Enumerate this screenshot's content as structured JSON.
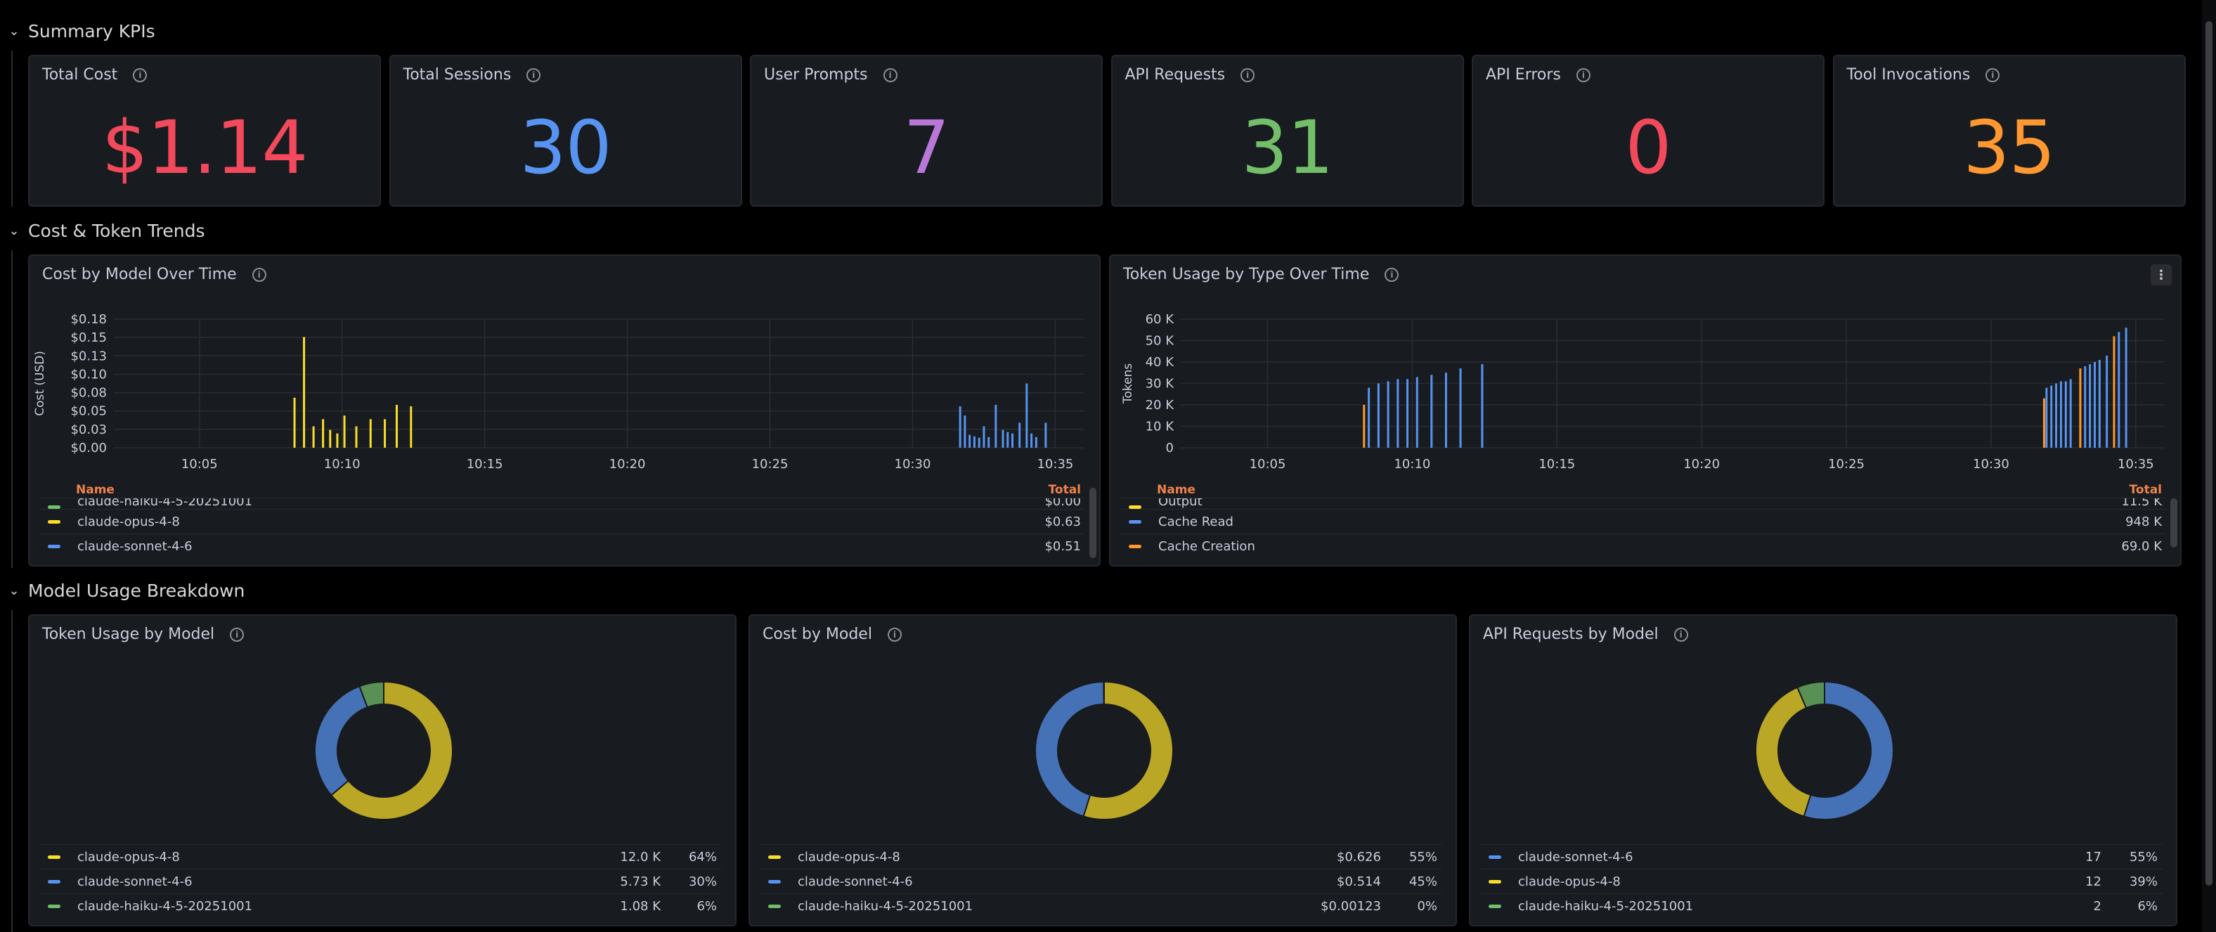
{
  "rows": {
    "summary": {
      "title": "Summary KPIs"
    },
    "trends": {
      "title": "Cost & Token Trends"
    },
    "breakdown": {
      "title": "Model Usage Breakdown"
    }
  },
  "kpis": [
    {
      "title": "Total Cost",
      "value": "$1.14",
      "color": "#f2495c"
    },
    {
      "title": "Total Sessions",
      "value": "30",
      "color": "#5794f2"
    },
    {
      "title": "User Prompts",
      "value": "7",
      "color": "#b877d9"
    },
    {
      "title": "API Requests",
      "value": "31",
      "color": "#73bf69"
    },
    {
      "title": "API Errors",
      "value": "0",
      "color": "#f2495c"
    },
    {
      "title": "Tool Invocations",
      "value": "35",
      "color": "#ff9830"
    }
  ],
  "cost_chart": {
    "title": "Cost by Model Over Time",
    "legend_head": {
      "name": "Name",
      "total": "Total"
    },
    "legend": [
      {
        "name": "claude-haiku-4-5-20251001",
        "total": "$0.00",
        "color": "#73bf69"
      },
      {
        "name": "claude-opus-4-8",
        "total": "$0.63",
        "color": "#fade2a"
      },
      {
        "name": "claude-sonnet-4-6",
        "total": "$0.51",
        "color": "#5794f2"
      }
    ]
  },
  "token_chart": {
    "title": "Token Usage by Type Over Time",
    "menu_icon": "more-vertical-icon",
    "legend_head": {
      "name": "Name",
      "total": "Total"
    },
    "legend": [
      {
        "name": "Output",
        "total": "11.5 K",
        "color": "#fade2a"
      },
      {
        "name": "Cache Read",
        "total": "948 K",
        "color": "#5794f2"
      },
      {
        "name": "Cache Creation",
        "total": "69.0 K",
        "color": "#ff9830"
      }
    ]
  },
  "donuts": [
    {
      "title": "Token Usage by Model",
      "legend": [
        {
          "name": "claude-opus-4-8",
          "value": "12.0 K",
          "pct": "64%",
          "color": "#fade2a"
        },
        {
          "name": "claude-sonnet-4-6",
          "value": "5.73 K",
          "pct": "30%",
          "color": "#5794f2"
        },
        {
          "name": "claude-haiku-4-5-20251001",
          "value": "1.08 K",
          "pct": "6%",
          "color": "#73bf69"
        }
      ]
    },
    {
      "title": "Cost by Model",
      "legend": [
        {
          "name": "claude-opus-4-8",
          "value": "$0.626",
          "pct": "55%",
          "color": "#fade2a"
        },
        {
          "name": "claude-sonnet-4-6",
          "value": "$0.514",
          "pct": "45%",
          "color": "#5794f2"
        },
        {
          "name": "claude-haiku-4-5-20251001",
          "value": "$0.00123",
          "pct": "0%",
          "color": "#73bf69"
        }
      ]
    },
    {
      "title": "API Requests by Model",
      "legend": [
        {
          "name": "claude-sonnet-4-6",
          "value": "17",
          "pct": "55%",
          "color": "#5794f2"
        },
        {
          "name": "claude-opus-4-8",
          "value": "12",
          "pct": "39%",
          "color": "#fade2a"
        },
        {
          "name": "claude-haiku-4-5-20251001",
          "value": "2",
          "pct": "6%",
          "color": "#73bf69"
        }
      ]
    }
  ],
  "chart_data": [
    {
      "type": "bar",
      "title": "Cost by Model Over Time",
      "xlabel": "",
      "ylabel": "Cost (USD)",
      "x_ticks": [
        "10:05",
        "10:10",
        "10:15",
        "10:20",
        "10:25",
        "10:30",
        "10:35"
      ],
      "y_ticks": [
        "$0.00",
        "$0.03",
        "$0.05",
        "$0.08",
        "$0.10",
        "$0.13",
        "$0.15",
        "$0.18"
      ],
      "xlim": [
        "10:02",
        "10:36"
      ],
      "ylim": [
        0,
        0.18
      ],
      "grid": true,
      "series": [
        {
          "name": "claude-opus-4-8",
          "color": "#fade2a",
          "points": [
            {
              "x": "10:08:20",
              "y": 0.07
            },
            {
              "x": "10:08:40",
              "y": 0.155
            },
            {
              "x": "10:09:00",
              "y": 0.03
            },
            {
              "x": "10:09:20",
              "y": 0.04
            },
            {
              "x": "10:09:35",
              "y": 0.025
            },
            {
              "x": "10:09:50",
              "y": 0.02
            },
            {
              "x": "10:10:05",
              "y": 0.045
            },
            {
              "x": "10:10:30",
              "y": 0.03
            },
            {
              "x": "10:11:00",
              "y": 0.04
            },
            {
              "x": "10:11:30",
              "y": 0.04
            },
            {
              "x": "10:11:55",
              "y": 0.06
            },
            {
              "x": "10:12:25",
              "y": 0.058
            }
          ]
        },
        {
          "name": "claude-sonnet-4-6",
          "color": "#5794f2",
          "points": [
            {
              "x": "10:31:40",
              "y": 0.058
            },
            {
              "x": "10:31:50",
              "y": 0.045
            },
            {
              "x": "10:32:00",
              "y": 0.018
            },
            {
              "x": "10:32:10",
              "y": 0.016
            },
            {
              "x": "10:32:20",
              "y": 0.014
            },
            {
              "x": "10:32:30",
              "y": 0.03
            },
            {
              "x": "10:32:40",
              "y": 0.015
            },
            {
              "x": "10:32:55",
              "y": 0.06
            },
            {
              "x": "10:33:10",
              "y": 0.025
            },
            {
              "x": "10:33:20",
              "y": 0.022
            },
            {
              "x": "10:33:30",
              "y": 0.02
            },
            {
              "x": "10:33:45",
              "y": 0.035
            },
            {
              "x": "10:34:00",
              "y": 0.09
            },
            {
              "x": "10:34:10",
              "y": 0.02
            },
            {
              "x": "10:34:20",
              "y": 0.015
            },
            {
              "x": "10:34:40",
              "y": 0.035
            }
          ]
        }
      ]
    },
    {
      "type": "bar",
      "title": "Token Usage by Type Over Time",
      "xlabel": "",
      "ylabel": "Tokens",
      "x_ticks": [
        "10:05",
        "10:10",
        "10:15",
        "10:20",
        "10:25",
        "10:30",
        "10:35"
      ],
      "y_ticks": [
        "0",
        "10 K",
        "20 K",
        "30 K",
        "40 K",
        "50 K",
        "60 K"
      ],
      "xlim": [
        "10:02",
        "10:36"
      ],
      "ylim": [
        0,
        60000
      ],
      "grid": true,
      "series": [
        {
          "name": "Cache Creation",
          "color": "#ff9830",
          "points": [
            {
              "x": "10:08:20",
              "y": 20000
            },
            {
              "x": "10:31:50",
              "y": 23000
            },
            {
              "x": "10:33:05",
              "y": 37000
            },
            {
              "x": "10:34:15",
              "y": 52000
            }
          ]
        },
        {
          "name": "Cache Read",
          "color": "#5794f2",
          "points": [
            {
              "x": "10:08:30",
              "y": 28000
            },
            {
              "x": "10:08:50",
              "y": 30000
            },
            {
              "x": "10:09:10",
              "y": 31000
            },
            {
              "x": "10:09:30",
              "y": 32000
            },
            {
              "x": "10:09:50",
              "y": 32000
            },
            {
              "x": "10:10:10",
              "y": 33000
            },
            {
              "x": "10:10:40",
              "y": 34000
            },
            {
              "x": "10:11:10",
              "y": 35000
            },
            {
              "x": "10:11:40",
              "y": 37000
            },
            {
              "x": "10:12:25",
              "y": 39000
            },
            {
              "x": "10:31:55",
              "y": 28000
            },
            {
              "x": "10:32:05",
              "y": 29000
            },
            {
              "x": "10:32:15",
              "y": 30000
            },
            {
              "x": "10:32:25",
              "y": 31000
            },
            {
              "x": "10:32:35",
              "y": 31000
            },
            {
              "x": "10:32:45",
              "y": 32000
            },
            {
              "x": "10:33:15",
              "y": 38000
            },
            {
              "x": "10:33:25",
              "y": 39000
            },
            {
              "x": "10:33:35",
              "y": 40000
            },
            {
              "x": "10:33:45",
              "y": 41000
            },
            {
              "x": "10:34:00",
              "y": 43000
            },
            {
              "x": "10:34:25",
              "y": 54000
            },
            {
              "x": "10:34:40",
              "y": 56000
            }
          ]
        }
      ]
    },
    {
      "type": "pie",
      "title": "Token Usage by Model",
      "categories": [
        "claude-opus-4-8",
        "claude-sonnet-4-6",
        "claude-haiku-4-5-20251001"
      ],
      "values": [
        12000,
        5730,
        1080
      ],
      "colors": [
        "#fade2a",
        "#5794f2",
        "#73bf69"
      ]
    },
    {
      "type": "pie",
      "title": "Cost by Model",
      "categories": [
        "claude-opus-4-8",
        "claude-sonnet-4-6",
        "claude-haiku-4-5-20251001"
      ],
      "values": [
        0.626,
        0.514,
        0.00123
      ],
      "colors": [
        "#fade2a",
        "#5794f2",
        "#73bf69"
      ]
    },
    {
      "type": "pie",
      "title": "API Requests by Model",
      "categories": [
        "claude-sonnet-4-6",
        "claude-opus-4-8",
        "claude-haiku-4-5-20251001"
      ],
      "values": [
        17,
        12,
        2
      ],
      "colors": [
        "#5794f2",
        "#fade2a",
        "#73bf69"
      ]
    }
  ]
}
